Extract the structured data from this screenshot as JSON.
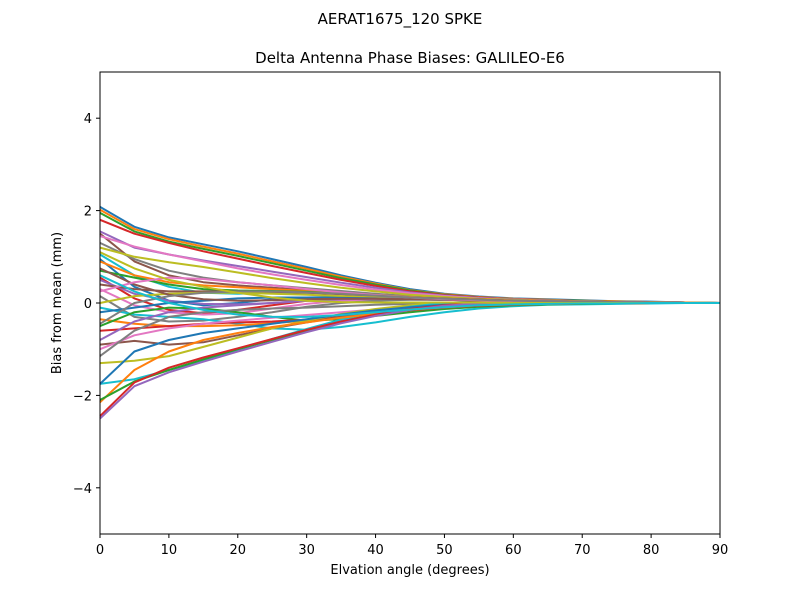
{
  "figure": {
    "suptitle": "AERAT1675_120   SPKE"
  },
  "chart_data": {
    "type": "line",
    "title": "Delta Antenna Phase Biases: GALILEO-E6",
    "xlabel": "Elvation angle (degrees)",
    "ylabel": "Bias from mean (mm)",
    "xlim": [
      0,
      90
    ],
    "ylim": [
      -5,
      5
    ],
    "xticks": [
      0,
      10,
      20,
      30,
      40,
      50,
      60,
      70,
      80,
      90
    ],
    "yticks": [
      -4,
      -2,
      0,
      2,
      4
    ],
    "ytick_labels": [
      "−4",
      "−2",
      "0",
      "2",
      "4"
    ],
    "grid": false,
    "legend": "none",
    "palette": [
      "#1f77b4",
      "#ff7f0e",
      "#2ca02c",
      "#d62728",
      "#9467bd",
      "#8c564b",
      "#e377c2",
      "#7f7f7f",
      "#bcbd22",
      "#17becf"
    ],
    "x": [
      0,
      5,
      10,
      15,
      20,
      25,
      30,
      35,
      40,
      45,
      50,
      55,
      60,
      65,
      70,
      75,
      80,
      85,
      90
    ],
    "series": [
      {
        "values": [
          2.08,
          1.65,
          1.42,
          1.27,
          1.12,
          0.95,
          0.78,
          0.6,
          0.44,
          0.3,
          0.2,
          0.14,
          0.1,
          0.08,
          0.06,
          0.04,
          0.03,
          0.01,
          0
        ]
      },
      {
        "values": [
          2.02,
          1.6,
          1.38,
          1.22,
          1.07,
          0.9,
          0.74,
          0.57,
          0.42,
          0.28,
          0.19,
          0.13,
          0.09,
          0.07,
          0.05,
          0.04,
          0.02,
          0.01,
          0
        ]
      },
      {
        "values": [
          1.95,
          1.55,
          1.33,
          1.17,
          1.02,
          0.86,
          0.7,
          0.54,
          0.4,
          0.27,
          0.18,
          0.12,
          0.08,
          0.06,
          0.05,
          0.03,
          0.02,
          0.01,
          0
        ]
      },
      {
        "values": [
          1.8,
          1.5,
          1.3,
          1.12,
          0.96,
          0.8,
          0.65,
          0.5,
          0.37,
          0.25,
          0.17,
          0.12,
          0.08,
          0.06,
          0.04,
          0.03,
          0.02,
          0.01,
          0
        ]
      },
      {
        "values": [
          1.55,
          1.2,
          1.05,
          0.92,
          0.8,
          0.68,
          0.56,
          0.44,
          0.33,
          0.23,
          0.16,
          0.11,
          0.08,
          0.06,
          0.04,
          0.03,
          0.02,
          0.01,
          0
        ]
      },
      {
        "values": [
          1.5,
          0.9,
          0.6,
          0.45,
          0.38,
          0.33,
          0.28,
          0.23,
          0.18,
          0.14,
          0.11,
          0.09,
          0.07,
          0.05,
          0.04,
          0.03,
          0.02,
          0.01,
          0
        ]
      },
      {
        "values": [
          1.45,
          1.22,
          1.05,
          0.9,
          0.75,
          0.62,
          0.5,
          0.39,
          0.29,
          0.21,
          0.15,
          0.1,
          0.07,
          0.05,
          0.04,
          0.03,
          0.02,
          0.01,
          0
        ]
      },
      {
        "values": [
          1.3,
          0.95,
          0.7,
          0.55,
          0.45,
          0.38,
          0.32,
          0.26,
          0.2,
          0.15,
          0.11,
          0.08,
          0.06,
          0.05,
          0.04,
          0.03,
          0.02,
          0.01,
          0
        ]
      },
      {
        "values": [
          1.2,
          1.0,
          0.88,
          0.78,
          0.66,
          0.54,
          0.43,
          0.33,
          0.25,
          0.18,
          0.13,
          0.09,
          0.07,
          0.05,
          0.04,
          0.03,
          0.02,
          0.01,
          0
        ]
      },
      {
        "values": [
          1.05,
          0.6,
          0.35,
          0.22,
          0.2,
          0.22,
          0.22,
          0.2,
          0.17,
          0.13,
          0.1,
          0.08,
          0.06,
          0.05,
          0.04,
          0.03,
          0.02,
          0.01,
          0
        ]
      },
      {
        "values": [
          0.95,
          0.35,
          0.05,
          -0.05,
          0.0,
          0.08,
          0.12,
          0.13,
          0.12,
          0.1,
          0.08,
          0.06,
          0.05,
          0.04,
          0.03,
          0.02,
          0.01,
          0.0,
          0
        ]
      },
      {
        "values": [
          0.9,
          0.6,
          0.45,
          0.38,
          0.34,
          0.3,
          0.26,
          0.21,
          0.17,
          0.13,
          0.1,
          0.08,
          0.06,
          0.05,
          0.04,
          0.03,
          0.02,
          0.01,
          0
        ]
      },
      {
        "values": [
          0.7,
          0.55,
          0.4,
          0.3,
          0.27,
          0.26,
          0.24,
          0.2,
          0.16,
          0.12,
          0.09,
          0.07,
          0.05,
          0.04,
          0.03,
          0.02,
          0.01,
          0.0,
          0
        ]
      },
      {
        "values": [
          0.55,
          0.1,
          -0.15,
          -0.22,
          -0.15,
          -0.05,
          0.05,
          0.1,
          0.12,
          0.11,
          0.09,
          0.07,
          0.05,
          0.04,
          0.03,
          0.02,
          0.01,
          0.0,
          0
        ]
      },
      {
        "values": [
          0.5,
          0.2,
          0.05,
          -0.02,
          -0.03,
          0.0,
          0.05,
          0.08,
          0.09,
          0.09,
          0.08,
          0.06,
          0.05,
          0.04,
          0.03,
          0.02,
          0.01,
          0.0,
          0
        ]
      },
      {
        "values": [
          0.4,
          0.3,
          0.25,
          0.25,
          0.25,
          0.24,
          0.22,
          0.19,
          0.15,
          0.12,
          0.09,
          0.07,
          0.05,
          0.04,
          0.03,
          0.02,
          0.01,
          0.0,
          0
        ]
      },
      {
        "values": [
          0.3,
          -0.05,
          -0.2,
          -0.25,
          -0.22,
          -0.12,
          -0.02,
          0.05,
          0.08,
          0.09,
          0.08,
          0.06,
          0.05,
          0.04,
          0.03,
          0.02,
          0.01,
          0.0,
          0
        ]
      },
      {
        "values": [
          0.15,
          -0.3,
          -0.4,
          -0.38,
          -0.3,
          -0.2,
          -0.08,
          0.0,
          0.05,
          0.07,
          0.07,
          0.06,
          0.05,
          0.04,
          0.03,
          0.02,
          0.01,
          0.0,
          0
        ]
      },
      {
        "values": [
          0.0,
          0.15,
          0.2,
          0.22,
          0.22,
          0.2,
          0.18,
          0.15,
          0.12,
          0.1,
          0.08,
          0.06,
          0.05,
          0.04,
          0.03,
          0.02,
          0.01,
          0.0,
          0
        ]
      },
      {
        "values": [
          -0.1,
          -0.25,
          -0.3,
          -0.35,
          -0.45,
          -0.55,
          -0.58,
          -0.52,
          -0.42,
          -0.3,
          -0.2,
          -0.12,
          -0.07,
          -0.04,
          -0.03,
          -0.02,
          -0.01,
          0.0,
          0
        ]
      },
      {
        "values": [
          -0.2,
          -0.1,
          0.0,
          0.05,
          0.1,
          0.12,
          0.12,
          0.11,
          0.1,
          0.08,
          0.07,
          0.05,
          0.04,
          0.03,
          0.02,
          0.02,
          0.01,
          0.0,
          0
        ]
      },
      {
        "values": [
          -0.35,
          -0.45,
          -0.5,
          -0.5,
          -0.48,
          -0.44,
          -0.38,
          -0.3,
          -0.22,
          -0.15,
          -0.09,
          -0.05,
          -0.03,
          -0.02,
          -0.01,
          -0.01,
          0.0,
          0.0,
          0
        ]
      },
      {
        "values": [
          -0.5,
          -0.2,
          -0.1,
          -0.12,
          -0.2,
          -0.3,
          -0.38,
          -0.35,
          -0.28,
          -0.2,
          -0.13,
          -0.08,
          -0.05,
          -0.03,
          -0.02,
          -0.01,
          0.0,
          0.0,
          0
        ]
      },
      {
        "values": [
          -0.6,
          -0.55,
          -0.5,
          -0.45,
          -0.42,
          -0.4,
          -0.36,
          -0.3,
          -0.23,
          -0.16,
          -0.1,
          -0.06,
          -0.04,
          -0.02,
          -0.01,
          -0.01,
          0.0,
          0.0,
          0
        ]
      },
      {
        "values": [
          -0.8,
          -0.4,
          -0.2,
          -0.1,
          -0.05,
          0.0,
          0.05,
          0.08,
          0.09,
          0.09,
          0.08,
          0.06,
          0.05,
          0.04,
          0.03,
          0.02,
          0.01,
          0.0,
          0
        ]
      },
      {
        "values": [
          -0.9,
          -0.82,
          -0.9,
          -0.85,
          -0.7,
          -0.55,
          -0.42,
          -0.3,
          -0.2,
          -0.12,
          -0.07,
          -0.04,
          -0.02,
          -0.01,
          -0.01,
          0.0,
          0.0,
          0.0,
          0
        ]
      },
      {
        "values": [
          -1.0,
          -0.7,
          -0.55,
          -0.45,
          -0.38,
          -0.32,
          -0.26,
          -0.2,
          -0.14,
          -0.09,
          -0.05,
          -0.03,
          -0.02,
          -0.01,
          -0.01,
          0.0,
          0.0,
          0.0,
          0
        ]
      },
      {
        "values": [
          -1.15,
          -0.6,
          -0.3,
          -0.2,
          -0.15,
          -0.12,
          -0.1,
          -0.07,
          -0.04,
          -0.02,
          -0.01,
          0.0,
          0.0,
          0.0,
          0.0,
          0.0,
          0.0,
          0.0,
          0
        ]
      },
      {
        "values": [
          -1.3,
          -1.25,
          -1.15,
          -0.95,
          -0.75,
          -0.55,
          -0.38,
          -0.24,
          -0.13,
          -0.05,
          0.0,
          0.02,
          0.02,
          0.02,
          0.01,
          0.01,
          0.0,
          0.0,
          0
        ]
      },
      {
        "values": [
          -1.75,
          -1.65,
          -1.45,
          -1.25,
          -1.02,
          -0.78,
          -0.56,
          -0.36,
          -0.2,
          -0.08,
          0.0,
          0.03,
          0.04,
          0.03,
          0.02,
          0.01,
          0.0,
          0.0,
          0
        ]
      },
      {
        "values": [
          -1.75,
          -1.05,
          -0.8,
          -0.65,
          -0.55,
          -0.45,
          -0.35,
          -0.25,
          -0.16,
          -0.09,
          -0.04,
          -0.01,
          0.0,
          0.0,
          0.0,
          0.0,
          0.0,
          0.0,
          0
        ]
      },
      {
        "values": [
          -2.15,
          -1.45,
          -1.05,
          -0.8,
          -0.65,
          -0.52,
          -0.42,
          -0.32,
          -0.23,
          -0.15,
          -0.09,
          -0.05,
          -0.03,
          -0.02,
          -0.01,
          -0.01,
          0.0,
          0.0,
          0
        ]
      },
      {
        "values": [
          -2.1,
          -1.7,
          -1.45,
          -1.22,
          -1.0,
          -0.8,
          -0.6,
          -0.42,
          -0.27,
          -0.15,
          -0.07,
          -0.02,
          0.0,
          0.01,
          0.01,
          0.01,
          0.0,
          0.0,
          0
        ]
      },
      {
        "values": [
          -2.45,
          -1.72,
          -1.4,
          -1.18,
          -0.98,
          -0.78,
          -0.58,
          -0.4,
          -0.25,
          -0.13,
          -0.05,
          0.0,
          0.02,
          0.02,
          0.02,
          0.01,
          0.0,
          0.0,
          0
        ]
      },
      {
        "values": [
          -2.5,
          -1.8,
          -1.5,
          -1.27,
          -1.05,
          -0.84,
          -0.63,
          -0.44,
          -0.28,
          -0.15,
          -0.06,
          -0.01,
          0.01,
          0.02,
          0.01,
          0.01,
          0.0,
          0.0,
          0
        ]
      },
      {
        "values": [
          0.75,
          0.4,
          0.18,
          0.08,
          0.05,
          0.06,
          0.08,
          0.09,
          0.09,
          0.08,
          0.07,
          0.05,
          0.04,
          0.03,
          0.02,
          0.02,
          0.01,
          0.0,
          0
        ]
      },
      {
        "values": [
          0.25,
          0.45,
          0.55,
          0.52,
          0.45,
          0.38,
          0.3,
          0.23,
          0.17,
          0.12,
          0.08,
          0.06,
          0.04,
          0.03,
          0.02,
          0.02,
          0.01,
          0.0,
          0
        ]
      },
      {
        "values": [
          -0.45,
          0.0,
          0.15,
          0.22,
          0.25,
          0.25,
          0.23,
          0.2,
          0.16,
          0.12,
          0.09,
          0.07,
          0.05,
          0.04,
          0.03,
          0.02,
          0.01,
          0.0,
          0
        ]
      },
      {
        "values": [
          1.1,
          0.75,
          0.5,
          0.35,
          0.22,
          0.12,
          0.05,
          0.02,
          0.01,
          0.01,
          0.01,
          0.01,
          0.0,
          0.0,
          0.0,
          0.0,
          0.0,
          0.0,
          0
        ]
      },
      {
        "values": [
          0.6,
          0.25,
          0.0,
          -0.15,
          -0.25,
          -0.3,
          -0.3,
          -0.26,
          -0.2,
          -0.14,
          -0.09,
          -0.05,
          -0.03,
          -0.02,
          -0.01,
          -0.01,
          0.0,
          0.0,
          0
        ]
      }
    ]
  }
}
